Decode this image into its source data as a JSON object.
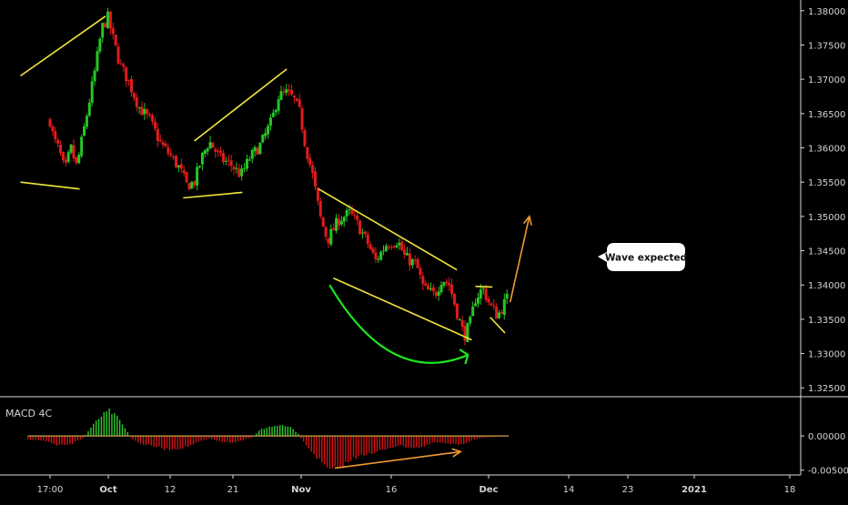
{
  "colors": {
    "background": "#000000",
    "up_candle": "#26c626",
    "down_candle": "#e21b1b",
    "axis_line": "#d9d9d9",
    "axis_text": "#d4d4d4",
    "trendline": "#f1e63b",
    "projection": "#f09a33",
    "curve": "#1ee41e",
    "macd_positive": "#2ecc2e",
    "macd_negative": "#d21515",
    "signal_line": "#c8a24a",
    "callout_bg": "#ffffff",
    "callout_text": "#111111"
  },
  "annotation": {
    "callout_text": "Wave expected"
  },
  "chart_data": [
    {
      "type": "candlestick",
      "y_tick_labels": [
        "1.38000",
        "1.37500",
        "1.37000",
        "1.36500",
        "1.36000",
        "1.35500",
        "1.35000",
        "1.34500",
        "1.34000",
        "1.33500",
        "1.33000",
        "1.32500"
      ],
      "ylim": [
        1.3245,
        1.3805
      ],
      "x_tick_labels": [
        "17:00",
        "Oct",
        "12",
        "21",
        "Nov",
        "16",
        "Dec",
        "14",
        "23",
        "2021",
        "18"
      ],
      "x_tick_bold": [
        "Oct",
        "Nov",
        "Dec",
        "2021"
      ],
      "close_path": [
        [
          0,
          1.364
        ],
        [
          0.05,
          1.3612
        ],
        [
          0.12,
          1.3598
        ],
        [
          0.2,
          1.3565
        ],
        [
          0.28,
          1.36
        ],
        [
          0.36,
          1.3572
        ],
        [
          0.5,
          1.365
        ],
        [
          0.62,
          1.372
        ],
        [
          0.7,
          1.3775
        ],
        [
          0.78,
          1.379
        ],
        [
          0.85,
          1.376
        ],
        [
          0.95,
          1.372
        ],
        [
          1.05,
          1.37
        ],
        [
          1.2,
          1.366
        ],
        [
          1.35,
          1.364
        ],
        [
          1.5,
          1.3605
        ],
        [
          1.62,
          1.359
        ],
        [
          1.75,
          1.357
        ],
        [
          1.85,
          1.3545
        ],
        [
          1.95,
          1.355
        ],
        [
          2.05,
          1.3585
        ],
        [
          2.15,
          1.361
        ],
        [
          2.3,
          1.3585
        ],
        [
          2.45,
          1.3575
        ],
        [
          2.58,
          1.356
        ],
        [
          2.7,
          1.3585
        ],
        [
          2.85,
          1.3605
        ],
        [
          3.0,
          1.364
        ],
        [
          3.08,
          1.3675
        ],
        [
          3.2,
          1.368
        ],
        [
          3.3,
          1.367
        ],
        [
          3.38,
          1.365
        ],
        [
          3.45,
          1.3605
        ],
        [
          3.55,
          1.356
        ],
        [
          3.65,
          1.35
        ],
        [
          3.75,
          1.3465
        ],
        [
          3.9,
          1.3495
        ],
        [
          4.05,
          1.3505
        ],
        [
          4.15,
          1.349
        ],
        [
          4.3,
          1.346
        ],
        [
          4.4,
          1.3435
        ],
        [
          4.55,
          1.346
        ],
        [
          4.7,
          1.3465
        ],
        [
          4.8,
          1.344
        ],
        [
          4.95,
          1.343
        ],
        [
          5.05,
          1.3395
        ],
        [
          5.2,
          1.3385
        ],
        [
          5.3,
          1.341
        ],
        [
          5.4,
          1.34
        ],
        [
          5.5,
          1.336
        ],
        [
          5.6,
          1.3325
        ],
        [
          5.68,
          1.3345
        ],
        [
          5.75,
          1.338
        ],
        [
          5.85,
          1.3395
        ],
        [
          5.95,
          1.337
        ],
        [
          6.05,
          1.3355
        ],
        [
          6.15,
          1.3375
        ],
        [
          6.2,
          1.3385
        ]
      ],
      "trendlines": [
        [
          [
            -0.4,
            1.3705
          ],
          [
            0.75,
            1.3792
          ]
        ],
        [
          [
            -0.4,
            1.355
          ],
          [
            0.4,
            1.354
          ]
        ],
        [
          [
            1.95,
            1.361
          ],
          [
            3.2,
            1.3715
          ]
        ],
        [
          [
            1.8,
            1.3527
          ],
          [
            2.6,
            1.3535
          ]
        ],
        [
          [
            3.63,
            1.354
          ],
          [
            5.5,
            1.3422
          ]
        ],
        [
          [
            3.83,
            1.341
          ],
          [
            5.7,
            1.332
          ]
        ],
        [
          [
            5.75,
            1.3398
          ],
          [
            5.98,
            1.3397
          ]
        ],
        [
          [
            5.95,
            1.3353
          ],
          [
            6.15,
            1.333
          ]
        ]
      ],
      "projection": [
        [
          6.22,
          1.3375
        ],
        [
          6.48,
          1.35
        ]
      ],
      "curve": {
        "start": [
          3.78,
          1.34
        ],
        "control": [
          4.6,
          1.325
        ],
        "end": [
          5.65,
          1.3298
        ]
      }
    },
    {
      "type": "histogram",
      "title": "MACD 4C",
      "y_tick_labels": [
        "0.00000",
        "-0.00500"
      ],
      "ylim": [
        -0.0057,
        0.0052
      ],
      "profile": [
        [
          -0.3,
          -0.0005
        ],
        [
          -0.05,
          -0.0008
        ],
        [
          0.1,
          -0.0014
        ],
        [
          0.3,
          -0.0011
        ],
        [
          0.45,
          -0.0003
        ],
        [
          0.55,
          0.0012
        ],
        [
          0.68,
          0.0028
        ],
        [
          0.8,
          0.0037
        ],
        [
          0.92,
          0.0026
        ],
        [
          1.05,
          0.0005
        ],
        [
          1.1,
          -0.0004
        ],
        [
          1.25,
          -0.0012
        ],
        [
          1.4,
          -0.0015
        ],
        [
          1.55,
          -0.0019
        ],
        [
          1.7,
          -0.0019
        ],
        [
          1.85,
          -0.0016
        ],
        [
          2.0,
          -0.0009
        ],
        [
          2.15,
          -0.0004
        ],
        [
          2.25,
          -0.0007
        ],
        [
          2.45,
          -0.001
        ],
        [
          2.6,
          -0.0007
        ],
        [
          2.75,
          -0.0001
        ],
        [
          2.85,
          0.001
        ],
        [
          3.0,
          0.0014
        ],
        [
          3.15,
          0.0017
        ],
        [
          3.25,
          0.0013
        ],
        [
          3.35,
          0.0004
        ],
        [
          3.4,
          -0.0005
        ],
        [
          3.5,
          -0.0018
        ],
        [
          3.6,
          -0.003
        ],
        [
          3.7,
          -0.0044
        ],
        [
          3.8,
          -0.0051
        ],
        [
          3.9,
          -0.0047
        ],
        [
          4.05,
          -0.0037
        ],
        [
          4.2,
          -0.0026
        ],
        [
          4.35,
          -0.0027
        ],
        [
          4.5,
          -0.002
        ],
        [
          4.7,
          -0.0014
        ],
        [
          4.9,
          -0.0017
        ],
        [
          5.05,
          -0.0016
        ],
        [
          5.2,
          -0.0009
        ],
        [
          5.35,
          -0.0011
        ],
        [
          5.5,
          -0.0013
        ],
        [
          5.6,
          -0.0011
        ],
        [
          5.75,
          -0.0004
        ],
        [
          5.9,
          -0.0002
        ],
        [
          6.05,
          -0.0001
        ],
        [
          6.2,
          0.0
        ]
      ],
      "projection": [
        [
          3.85,
          -0.0047
        ],
        [
          5.55,
          -0.0023
        ]
      ]
    }
  ]
}
